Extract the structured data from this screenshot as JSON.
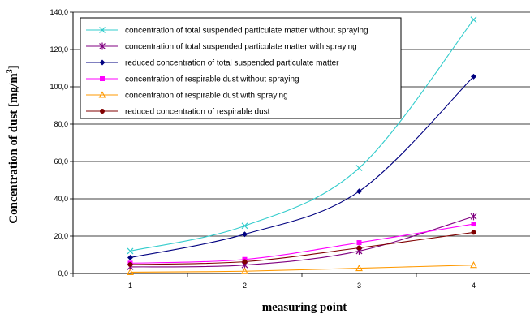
{
  "chart_data": {
    "type": "line",
    "title": "",
    "xlabel": "measuring point",
    "ylabel_main": "Concentration of dust [mg/m",
    "ylabel_sup": "3",
    "ylabel_close": "]",
    "categories": [
      "1",
      "2",
      "3",
      "4"
    ],
    "ylim": [
      0,
      140
    ],
    "y_ticks": [
      {
        "value": 0,
        "label": "0,0"
      },
      {
        "value": 20,
        "label": "20,0"
      },
      {
        "value": 40,
        "label": "40,0"
      },
      {
        "value": 60,
        "label": "60,0"
      },
      {
        "value": 80,
        "label": "80,0"
      },
      {
        "value": 100,
        "label": "100,0"
      },
      {
        "value": 120,
        "label": "120,0"
      },
      {
        "value": 140,
        "label": "140,0"
      }
    ],
    "grid": "horizontal",
    "legend_position": "top-left",
    "series": [
      {
        "name": "concentration of total suspended particulate matter without spraying",
        "values": [
          12.0,
          25.5,
          56.5,
          136.0
        ],
        "color": "#33CCCC",
        "marker": "x"
      },
      {
        "name": "concentration of total suspended particulate matter with spraying",
        "values": [
          3.5,
          4.5,
          12.0,
          30.5
        ],
        "color": "#800080",
        "marker": "star"
      },
      {
        "name": "reduced concentration of total suspended particulate matter",
        "values": [
          8.5,
          21.0,
          44.0,
          105.5
        ],
        "color": "#000080",
        "marker": "diamond"
      },
      {
        "name": "concentration of respirable dust without spraying",
        "values": [
          5.5,
          7.5,
          16.5,
          26.5
        ],
        "color": "#FF00FF",
        "marker": "square"
      },
      {
        "name": "concentration of respirable dust with spraying",
        "values": [
          0.7,
          1.2,
          2.8,
          4.5
        ],
        "color": "#FF9900",
        "marker": "triangle"
      },
      {
        "name": "reduced concentration of respirable dust",
        "values": [
          4.8,
          6.3,
          13.7,
          22.0
        ],
        "color": "#800000",
        "marker": "circle"
      }
    ]
  }
}
